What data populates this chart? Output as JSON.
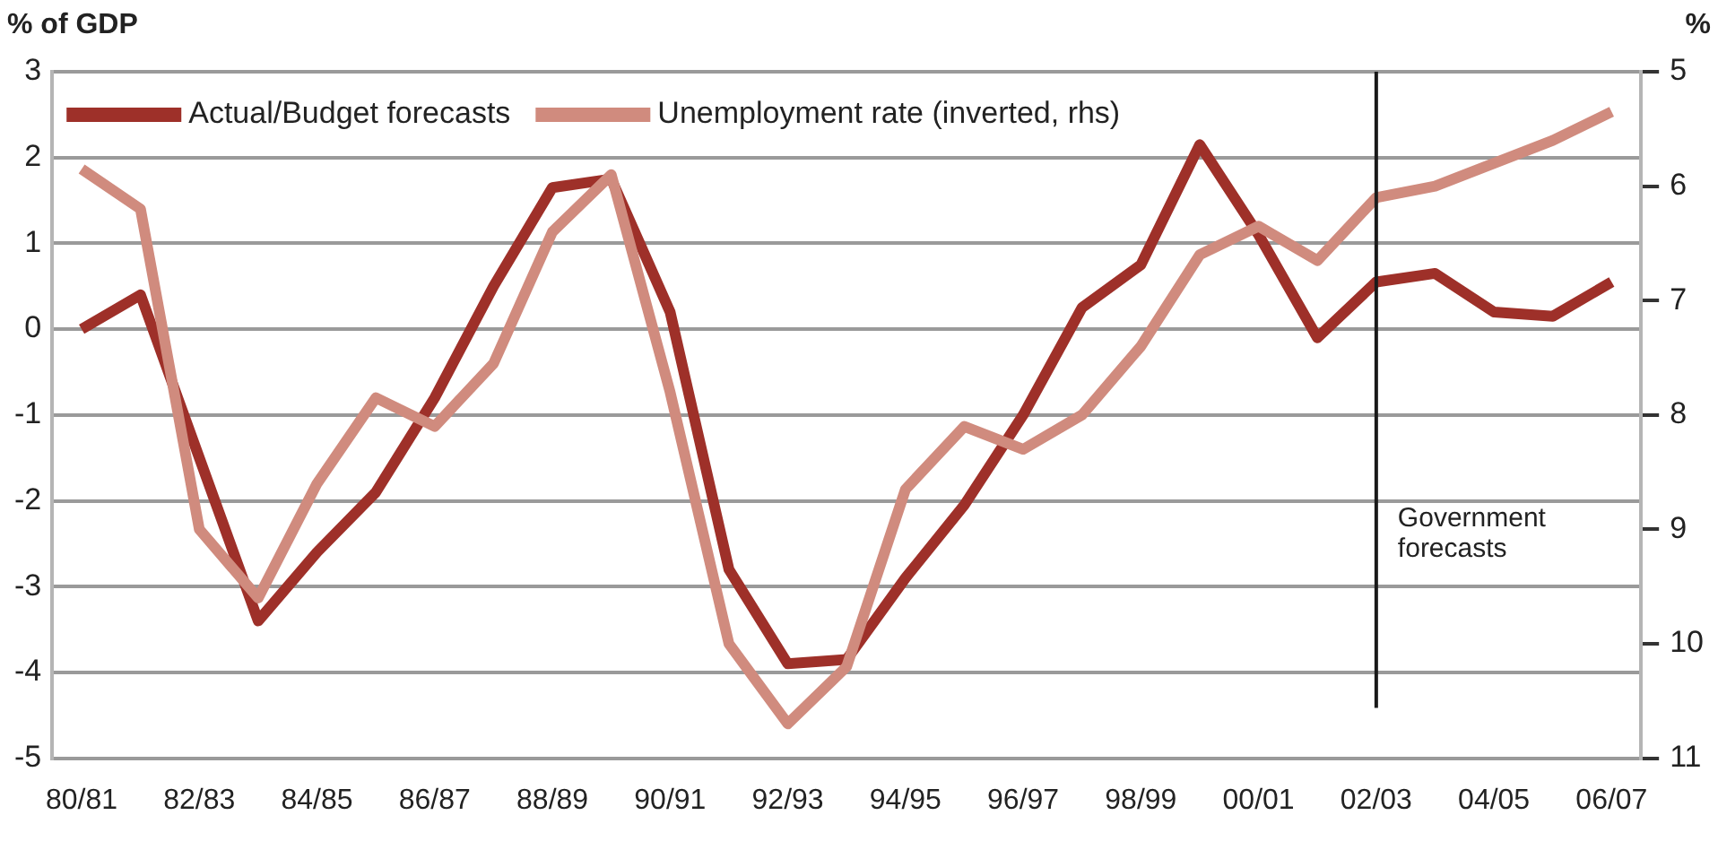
{
  "chart_data": {
    "type": "line",
    "ylabel": "% of GDP",
    "y2label": "%",
    "categories": [
      "80/81",
      null,
      "82/83",
      null,
      "84/85",
      null,
      "86/87",
      null,
      "88/89",
      null,
      "90/91",
      null,
      "92/93",
      null,
      "94/95",
      null,
      "96/97",
      null,
      "98/99",
      null,
      "00/01",
      null,
      "02/03",
      null,
      "04/05",
      null,
      "06/07"
    ],
    "series": [
      {
        "name": "Actual/Budget forecasts",
        "color": "#9e3029",
        "values": [
          0.0,
          0.4,
          -1.5,
          -3.4,
          -2.6,
          -1.9,
          -0.8,
          0.5,
          1.65,
          1.75,
          0.2,
          -2.8,
          -3.9,
          -3.85,
          -2.9,
          -2.05,
          -1.0,
          0.25,
          0.75,
          2.15,
          1.1,
          -0.1,
          0.55,
          0.65,
          0.2,
          0.15,
          0.55
        ]
      },
      {
        "name": "Unemployment rate (inverted, rhs)",
        "color": "#d08b7e",
        "axis": "y2",
        "values": [
          5.85,
          6.2,
          9.0,
          9.6,
          8.6,
          7.85,
          8.1,
          7.55,
          6.4,
          5.9,
          7.8,
          10.0,
          10.7,
          10.2,
          8.65,
          8.1,
          8.3,
          8.0,
          7.4,
          6.6,
          6.35,
          6.65,
          6.1,
          6.0,
          5.8,
          5.6,
          5.35
        ]
      }
    ],
    "ylim": [
      -5,
      3
    ],
    "yticks": [
      -5,
      -4,
      -3,
      -2,
      -1,
      0,
      1,
      2,
      3
    ],
    "y2lim": [
      11,
      5
    ],
    "y2ticks": [
      5,
      6,
      7,
      8,
      9,
      10,
      11
    ],
    "ref_lines": [
      {
        "axis": "x",
        "value": "02/03",
        "label": "Government forecasts",
        "color": "#1a1a1a"
      }
    ],
    "grid": "y",
    "legend": "top left",
    "marker": "none",
    "line_style": "solid"
  }
}
